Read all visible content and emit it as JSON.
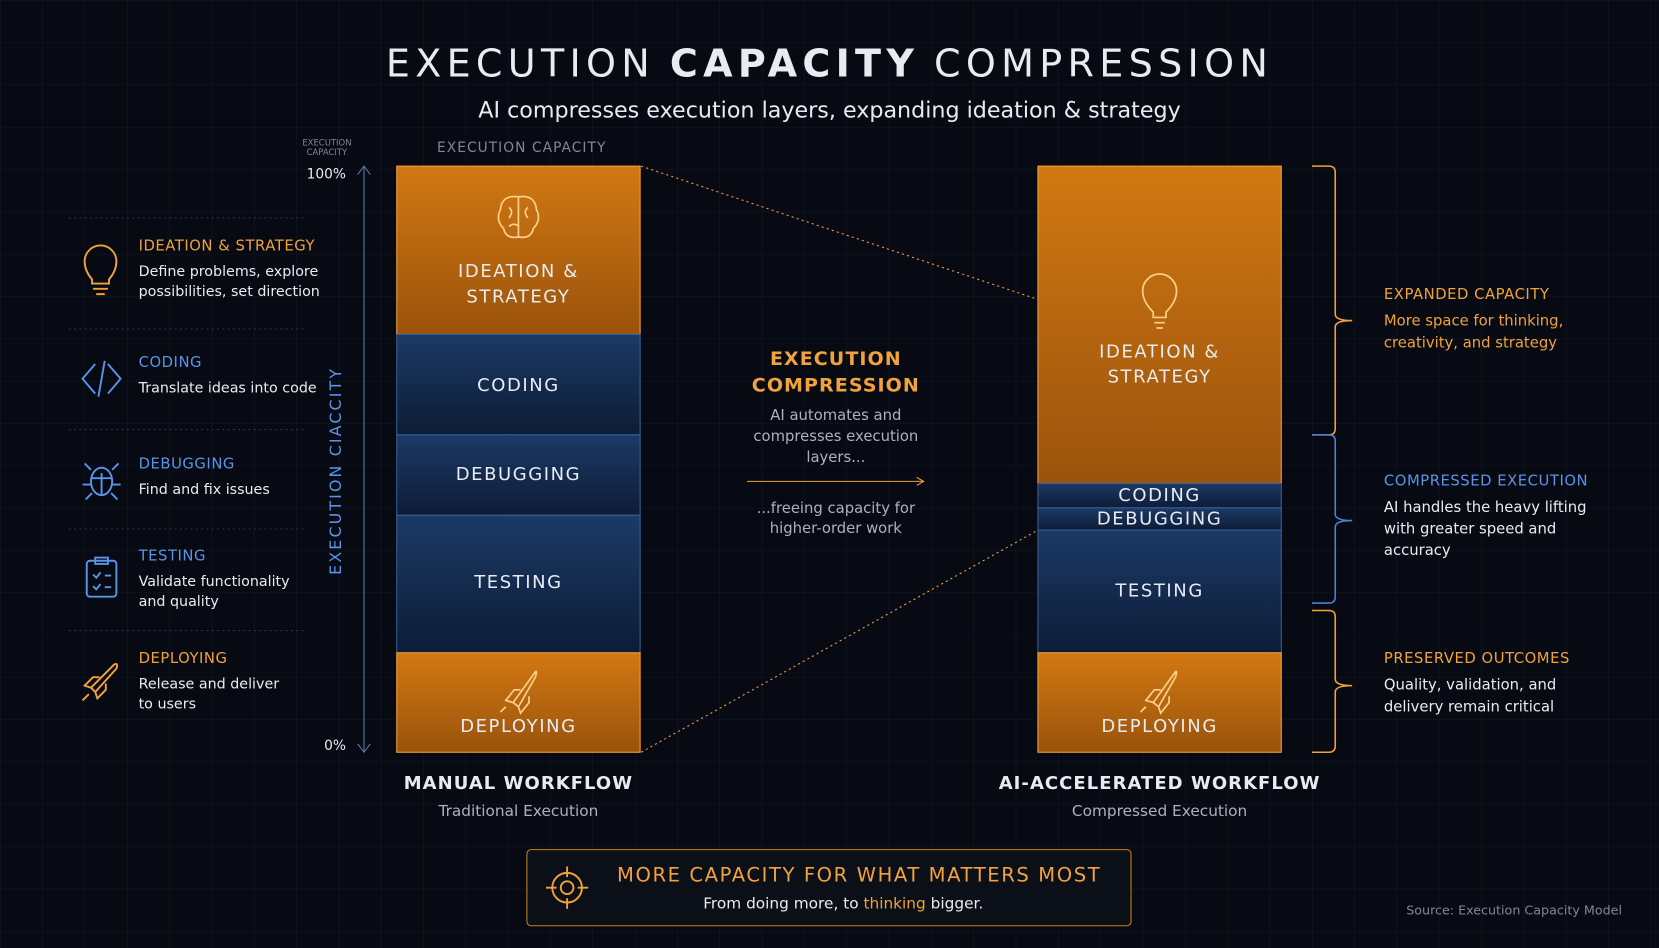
{
  "title": {
    "parts": [
      "EXECUTION",
      "CAPACITY",
      "COMPRESSION"
    ]
  },
  "subtitle": "AI compresses execution layers, expanding ideation & strategy",
  "axis": {
    "corner_label": [
      "EXECUTION",
      "CAPACITY"
    ],
    "top_label": "EXECUTION CAPACITY",
    "vertical_label": "EXECUTION CIACCITY",
    "max": "100%",
    "min": "0%"
  },
  "legend": [
    {
      "title": "IDEATION & STRATEGY",
      "lines": [
        "Define problems, explore",
        "possibilities, set direction"
      ]
    },
    {
      "title": "CODING",
      "lines": [
        "Translate ideas into code"
      ]
    },
    {
      "title": "DEBUGGING",
      "lines": [
        "Find and fix issues"
      ]
    },
    {
      "title": "TESTING",
      "lines": [
        "Validate functionality",
        "and quality"
      ]
    },
    {
      "title": "DEPLOYING",
      "lines": [
        "Release and deliver",
        "to users"
      ]
    }
  ],
  "manual": {
    "segments": [
      [
        "IDEATION &",
        "STRATEGY"
      ],
      [
        "CODING"
      ],
      [
        "DEBUGGING"
      ],
      [
        "TESTING"
      ],
      [
        "DEPLOYING"
      ]
    ],
    "title": "MANUAL WORKFLOW",
    "subtitle": "Traditional Execution"
  },
  "middle": {
    "heading": [
      "EXECUTION",
      "COMPRESSION"
    ],
    "text": [
      "AI automates and",
      "compresses execution",
      "layers..."
    ],
    "text2": [
      "...freeing capacity for",
      "higher-order work"
    ]
  },
  "ai": {
    "segments": [
      [
        "IDEATION &",
        "STRATEGY"
      ],
      [
        "CODING"
      ],
      [
        "DEBUGGING"
      ],
      [
        "TESTING"
      ],
      [
        "DEPLOYING"
      ]
    ],
    "title": "AI-ACCELERATED WORKFLOW",
    "subtitle": "Compressed Execution"
  },
  "annotations": [
    {
      "title": "EXPANDED CAPACITY",
      "lines": [
        "More space for thinking,",
        "creativity, and strategy"
      ]
    },
    {
      "title": "COMPRESSED EXECUTION",
      "lines": [
        "AI handles the heavy lifting",
        "with greater speed and",
        "accuracy"
      ]
    },
    {
      "title": "PRESERVED OUTCOMES",
      "lines": [
        "Quality, validation, and",
        "delivery remain critical"
      ]
    }
  ],
  "footer": {
    "title": "MORE CAPACITY FOR WHAT MATTERS MOST",
    "subtitle": [
      "From doing more, to ",
      "thinking",
      " bigger."
    ]
  },
  "source": "Source: Execution Capacity Model"
}
